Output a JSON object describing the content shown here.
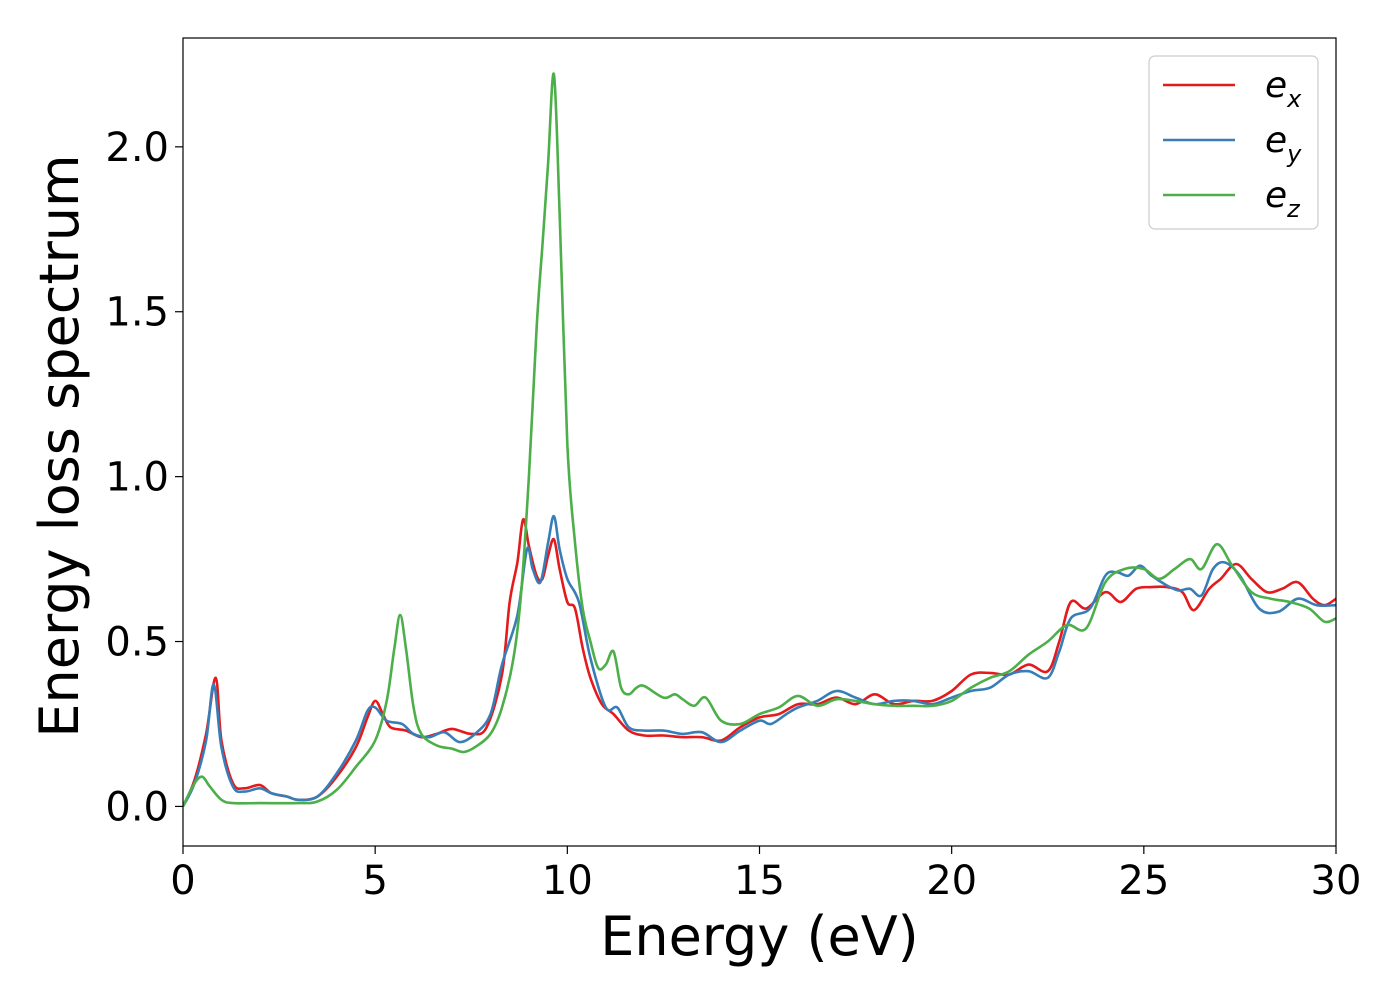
{
  "chart_data": {
    "type": "line",
    "title": "",
    "xlabel": "Energy (eV)",
    "ylabel": "Energy loss spectrum",
    "xlim": [
      0,
      30
    ],
    "ylim": [
      -0.12,
      2.33
    ],
    "xticks": [
      0,
      5,
      10,
      15,
      20,
      25,
      30
    ],
    "xtick_labels": [
      "0",
      "5",
      "10",
      "15",
      "20",
      "25",
      "30"
    ],
    "yticks": [
      0.0,
      0.5,
      1.0,
      1.5,
      2.0
    ],
    "ytick_labels": [
      "0.0",
      "0.5",
      "1.0",
      "1.5",
      "2.0"
    ],
    "grid": false,
    "legend_position": "top-right",
    "series": [
      {
        "name": "e_x",
        "legend_base": "e",
        "legend_sub": "x",
        "color": "#e41a1c",
        "points": [
          [
            0,
            0
          ],
          [
            0.3,
            0.08
          ],
          [
            0.6,
            0.22
          ],
          [
            0.85,
            0.39
          ],
          [
            1.0,
            0.2
          ],
          [
            1.3,
            0.07
          ],
          [
            1.6,
            0.055
          ],
          [
            2.0,
            0.065
          ],
          [
            2.3,
            0.04
          ],
          [
            2.7,
            0.03
          ],
          [
            3.0,
            0.02
          ],
          [
            3.5,
            0.03
          ],
          [
            4.0,
            0.09
          ],
          [
            4.5,
            0.18
          ],
          [
            4.8,
            0.27
          ],
          [
            5.0,
            0.32
          ],
          [
            5.2,
            0.28
          ],
          [
            5.4,
            0.24
          ],
          [
            5.8,
            0.23
          ],
          [
            6.2,
            0.21
          ],
          [
            6.6,
            0.22
          ],
          [
            7.0,
            0.235
          ],
          [
            7.5,
            0.22
          ],
          [
            7.9,
            0.24
          ],
          [
            8.3,
            0.4
          ],
          [
            8.5,
            0.62
          ],
          [
            8.7,
            0.74
          ],
          [
            8.85,
            0.87
          ],
          [
            9.0,
            0.79
          ],
          [
            9.2,
            0.7
          ],
          [
            9.35,
            0.69
          ],
          [
            9.5,
            0.76
          ],
          [
            9.65,
            0.81
          ],
          [
            9.8,
            0.72
          ],
          [
            10.0,
            0.62
          ],
          [
            10.2,
            0.6
          ],
          [
            10.4,
            0.48
          ],
          [
            10.6,
            0.39
          ],
          [
            10.9,
            0.31
          ],
          [
            11.2,
            0.28
          ],
          [
            11.6,
            0.23
          ],
          [
            12.0,
            0.215
          ],
          [
            12.5,
            0.215
          ],
          [
            13.0,
            0.21
          ],
          [
            13.5,
            0.21
          ],
          [
            14.0,
            0.2
          ],
          [
            14.5,
            0.24
          ],
          [
            15.0,
            0.27
          ],
          [
            15.5,
            0.28
          ],
          [
            16.0,
            0.31
          ],
          [
            16.5,
            0.31
          ],
          [
            17.0,
            0.33
          ],
          [
            17.5,
            0.31
          ],
          [
            18.0,
            0.34
          ],
          [
            18.5,
            0.31
          ],
          [
            19.0,
            0.32
          ],
          [
            19.5,
            0.32
          ],
          [
            20.0,
            0.35
          ],
          [
            20.5,
            0.4
          ],
          [
            21.0,
            0.405
          ],
          [
            21.5,
            0.4
          ],
          [
            22.0,
            0.43
          ],
          [
            22.5,
            0.41
          ],
          [
            22.8,
            0.5
          ],
          [
            23.1,
            0.62
          ],
          [
            23.5,
            0.6
          ],
          [
            24.0,
            0.65
          ],
          [
            24.4,
            0.62
          ],
          [
            24.8,
            0.66
          ],
          [
            25.2,
            0.665
          ],
          [
            25.6,
            0.665
          ],
          [
            26.0,
            0.65
          ],
          [
            26.3,
            0.595
          ],
          [
            26.7,
            0.66
          ],
          [
            27.0,
            0.69
          ],
          [
            27.4,
            0.735
          ],
          [
            27.8,
            0.69
          ],
          [
            28.2,
            0.65
          ],
          [
            28.6,
            0.66
          ],
          [
            29.0,
            0.68
          ],
          [
            29.4,
            0.63
          ],
          [
            29.7,
            0.61
          ],
          [
            30.0,
            0.63
          ]
        ]
      },
      {
        "name": "e_y",
        "legend_base": "e",
        "legend_sub": "y",
        "color": "#377eb8",
        "points": [
          [
            0,
            0
          ],
          [
            0.3,
            0.07
          ],
          [
            0.6,
            0.2
          ],
          [
            0.8,
            0.37
          ],
          [
            1.0,
            0.18
          ],
          [
            1.3,
            0.06
          ],
          [
            1.6,
            0.045
          ],
          [
            2.0,
            0.055
          ],
          [
            2.3,
            0.04
          ],
          [
            2.7,
            0.03
          ],
          [
            3.0,
            0.02
          ],
          [
            3.5,
            0.03
          ],
          [
            4.0,
            0.1
          ],
          [
            4.5,
            0.2
          ],
          [
            4.8,
            0.29
          ],
          [
            5.0,
            0.3
          ],
          [
            5.3,
            0.26
          ],
          [
            5.7,
            0.25
          ],
          [
            6.0,
            0.22
          ],
          [
            6.4,
            0.21
          ],
          [
            6.8,
            0.225
          ],
          [
            7.2,
            0.195
          ],
          [
            7.6,
            0.22
          ],
          [
            8.0,
            0.28
          ],
          [
            8.3,
            0.43
          ],
          [
            8.7,
            0.58
          ],
          [
            8.95,
            0.78
          ],
          [
            9.1,
            0.72
          ],
          [
            9.3,
            0.68
          ],
          [
            9.5,
            0.8
          ],
          [
            9.65,
            0.88
          ],
          [
            9.8,
            0.78
          ],
          [
            10.0,
            0.69
          ],
          [
            10.3,
            0.62
          ],
          [
            10.6,
            0.45
          ],
          [
            11.0,
            0.3
          ],
          [
            11.3,
            0.3
          ],
          [
            11.6,
            0.24
          ],
          [
            12.0,
            0.23
          ],
          [
            12.5,
            0.23
          ],
          [
            13.0,
            0.22
          ],
          [
            13.5,
            0.225
          ],
          [
            14.0,
            0.195
          ],
          [
            14.5,
            0.23
          ],
          [
            15.0,
            0.26
          ],
          [
            15.3,
            0.25
          ],
          [
            15.7,
            0.28
          ],
          [
            16.0,
            0.3
          ],
          [
            16.5,
            0.32
          ],
          [
            17.0,
            0.35
          ],
          [
            17.5,
            0.33
          ],
          [
            18.0,
            0.31
          ],
          [
            18.5,
            0.32
          ],
          [
            19.0,
            0.32
          ],
          [
            19.5,
            0.31
          ],
          [
            20.0,
            0.33
          ],
          [
            20.5,
            0.35
          ],
          [
            21.0,
            0.36
          ],
          [
            21.5,
            0.4
          ],
          [
            22.0,
            0.41
          ],
          [
            22.5,
            0.39
          ],
          [
            22.8,
            0.47
          ],
          [
            23.1,
            0.57
          ],
          [
            23.6,
            0.6
          ],
          [
            24.0,
            0.7
          ],
          [
            24.3,
            0.71
          ],
          [
            24.6,
            0.7
          ],
          [
            24.9,
            0.73
          ],
          [
            25.2,
            0.7
          ],
          [
            25.6,
            0.67
          ],
          [
            25.9,
            0.655
          ],
          [
            26.2,
            0.66
          ],
          [
            26.5,
            0.64
          ],
          [
            26.8,
            0.72
          ],
          [
            27.1,
            0.74
          ],
          [
            27.5,
            0.7
          ],
          [
            28.0,
            0.6
          ],
          [
            28.5,
            0.59
          ],
          [
            29.0,
            0.63
          ],
          [
            29.5,
            0.61
          ],
          [
            30.0,
            0.61
          ]
        ]
      },
      {
        "name": "e_z",
        "legend_base": "e",
        "legend_sub": "z",
        "color": "#4daf4a",
        "points": [
          [
            0,
            0
          ],
          [
            0.3,
            0.07
          ],
          [
            0.5,
            0.09
          ],
          [
            0.7,
            0.06
          ],
          [
            1.0,
            0.02
          ],
          [
            1.3,
            0.01
          ],
          [
            2.0,
            0.01
          ],
          [
            3.0,
            0.01
          ],
          [
            3.5,
            0.015
          ],
          [
            4.0,
            0.05
          ],
          [
            4.5,
            0.12
          ],
          [
            5.0,
            0.2
          ],
          [
            5.3,
            0.32
          ],
          [
            5.5,
            0.48
          ],
          [
            5.65,
            0.58
          ],
          [
            5.8,
            0.48
          ],
          [
            6.0,
            0.3
          ],
          [
            6.2,
            0.22
          ],
          [
            6.6,
            0.185
          ],
          [
            7.0,
            0.175
          ],
          [
            7.3,
            0.165
          ],
          [
            7.6,
            0.18
          ],
          [
            8.0,
            0.22
          ],
          [
            8.3,
            0.3
          ],
          [
            8.6,
            0.45
          ],
          [
            8.8,
            0.65
          ],
          [
            9.0,
            1.0
          ],
          [
            9.2,
            1.45
          ],
          [
            9.35,
            1.7
          ],
          [
            9.5,
            1.95
          ],
          [
            9.65,
            2.22
          ],
          [
            9.8,
            1.8
          ],
          [
            10.0,
            1.1
          ],
          [
            10.2,
            0.8
          ],
          [
            10.4,
            0.6
          ],
          [
            10.6,
            0.5
          ],
          [
            10.8,
            0.42
          ],
          [
            11.0,
            0.43
          ],
          [
            11.2,
            0.47
          ],
          [
            11.4,
            0.36
          ],
          [
            11.6,
            0.34
          ],
          [
            11.8,
            0.36
          ],
          [
            12.0,
            0.365
          ],
          [
            12.5,
            0.33
          ],
          [
            12.8,
            0.34
          ],
          [
            13.0,
            0.325
          ],
          [
            13.3,
            0.305
          ],
          [
            13.6,
            0.33
          ],
          [
            14.0,
            0.26
          ],
          [
            14.5,
            0.25
          ],
          [
            15.0,
            0.28
          ],
          [
            15.5,
            0.3
          ],
          [
            16.0,
            0.335
          ],
          [
            16.5,
            0.305
          ],
          [
            17.0,
            0.325
          ],
          [
            17.5,
            0.32
          ],
          [
            18.0,
            0.31
          ],
          [
            18.5,
            0.305
          ],
          [
            19.0,
            0.305
          ],
          [
            19.5,
            0.305
          ],
          [
            20.0,
            0.32
          ],
          [
            20.5,
            0.36
          ],
          [
            21.0,
            0.39
          ],
          [
            21.5,
            0.41
          ],
          [
            22.0,
            0.46
          ],
          [
            22.5,
            0.5
          ],
          [
            23.0,
            0.55
          ],
          [
            23.5,
            0.54
          ],
          [
            24.0,
            0.68
          ],
          [
            24.5,
            0.72
          ],
          [
            25.0,
            0.72
          ],
          [
            25.4,
            0.69
          ],
          [
            25.8,
            0.72
          ],
          [
            26.2,
            0.75
          ],
          [
            26.5,
            0.72
          ],
          [
            26.9,
            0.795
          ],
          [
            27.3,
            0.73
          ],
          [
            27.8,
            0.65
          ],
          [
            28.3,
            0.63
          ],
          [
            28.8,
            0.62
          ],
          [
            29.3,
            0.6
          ],
          [
            29.7,
            0.56
          ],
          [
            30.0,
            0.57
          ]
        ]
      }
    ]
  }
}
